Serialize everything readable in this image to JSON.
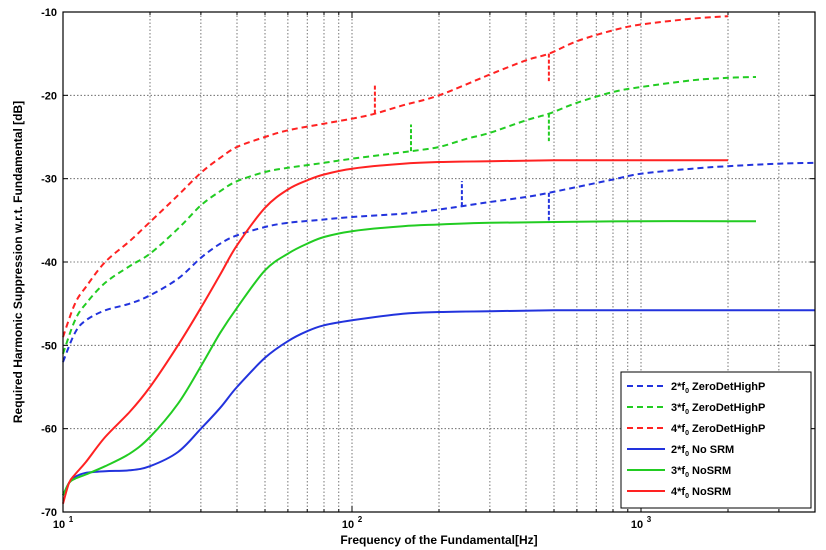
{
  "chart_data": {
    "type": "line",
    "xlabel": "Frequency of the Fundamental[Hz]",
    "ylabel": "Required Harmonic Suppression w.r.t. Fundamental [dB]",
    "xscale": "log",
    "xlim": [
      10,
      4000
    ],
    "ylim": [
      -70,
      -10
    ],
    "grid": "on",
    "legend_position": "bottom-right",
    "x_tick_labels": [
      {
        "value": 10,
        "base": "10",
        "exp": "1"
      },
      {
        "value": 100,
        "base": "10",
        "exp": "2"
      },
      {
        "value": 1000,
        "base": "10",
        "exp": "3"
      }
    ],
    "y_ticks": [
      -70,
      -60,
      -50,
      -40,
      -30,
      -20,
      -10
    ],
    "series": [
      {
        "name": "2*f0 ZeroDetHighP",
        "legend_prefix": "2*f",
        "legend_sub": "0",
        "legend_suffix": " ZeroDetHighP",
        "color": "#2233dd",
        "dash": true,
        "x": [
          10,
          11,
          12,
          14,
          17,
          20,
          25,
          30,
          35,
          40,
          50,
          60,
          80,
          100,
          150,
          200,
          240,
          300,
          400,
          480,
          600,
          800,
          1000,
          1500,
          2000,
          3000,
          4000
        ],
        "y": [
          -52,
          -48.5,
          -47,
          -45.8,
          -45,
          -44,
          -42,
          -39.5,
          -37.8,
          -36.8,
          -35.8,
          -35.3,
          -34.9,
          -34.6,
          -34.2,
          -33.7,
          -33.3,
          -32.8,
          -32.2,
          -31.7,
          -31,
          -30.1,
          -29.4,
          -28.8,
          -28.5,
          -28.2,
          -28.1
        ],
        "markers": [
          {
            "x": 240,
            "y1": -33.3,
            "y2": -30.3
          },
          {
            "x": 480,
            "y1": -31.7,
            "y2": -35
          }
        ]
      },
      {
        "name": "3*f0 ZeroDetHighP",
        "legend_prefix": "3*f",
        "legend_sub": "0",
        "legend_suffix": " ZeroDetHighP",
        "color": "#22cc22",
        "dash": true,
        "x": [
          10,
          11,
          12,
          14,
          17,
          20,
          25,
          30,
          35,
          40,
          50,
          60,
          80,
          100,
          130,
          160,
          200,
          250,
          300,
          400,
          480,
          600,
          800,
          1000,
          1500,
          2000,
          2500
        ],
        "y": [
          -51,
          -47,
          -45,
          -42.5,
          -40.5,
          -39,
          -36,
          -33.2,
          -31.5,
          -30.3,
          -29.2,
          -28.7,
          -28.1,
          -27.6,
          -27.1,
          -26.7,
          -26.2,
          -25.2,
          -24.5,
          -23,
          -22.2,
          -20.9,
          -19.6,
          -19,
          -18.2,
          -17.9,
          -17.8
        ],
        "markers": [
          {
            "x": 160,
            "y1": -26.7,
            "y2": -23.5
          },
          {
            "x": 480,
            "y1": -22.2,
            "y2": -25.5
          }
        ]
      },
      {
        "name": "4*f0 ZeroDetHighP",
        "legend_prefix": "4*f",
        "legend_sub": "0",
        "legend_suffix": " ZeroDetHighP",
        "color": "#ff2222",
        "dash": true,
        "x": [
          10,
          11,
          12,
          14,
          17,
          20,
          25,
          30,
          35,
          40,
          50,
          60,
          80,
          100,
          120,
          150,
          200,
          300,
          400,
          480,
          600,
          800,
          1000,
          1500,
          2000
        ],
        "y": [
          -49,
          -45,
          -43,
          -40,
          -37.5,
          -35.2,
          -32,
          -29.3,
          -27.5,
          -26.2,
          -25,
          -24.2,
          -23.4,
          -22.8,
          -22.2,
          -21.2,
          -20,
          -17.5,
          -15.8,
          -15,
          -13.5,
          -12.2,
          -11.5,
          -10.8,
          -10.5
        ],
        "markers": [
          {
            "x": 120,
            "y1": -22.2,
            "y2": -18.7
          },
          {
            "x": 480,
            "y1": -15,
            "y2": -18.3
          }
        ]
      },
      {
        "name": "2*f0 No SRM",
        "legend_prefix": "2*f",
        "legend_sub": "0",
        "legend_suffix": " No SRM",
        "color": "#2233dd",
        "dash": false,
        "x": [
          10,
          10.5,
          11,
          12,
          14,
          17,
          20,
          25,
          30,
          35,
          40,
          50,
          60,
          70,
          80,
          100,
          150,
          200,
          300,
          500,
          1000,
          2000,
          4000
        ],
        "y": [
          -68,
          -66.5,
          -65.8,
          -65.3,
          -65.1,
          -65,
          -64.5,
          -62.8,
          -60,
          -57.5,
          -55,
          -51.5,
          -49.5,
          -48.3,
          -47.6,
          -47,
          -46.2,
          -46,
          -45.9,
          -45.8,
          -45.8,
          -45.8,
          -45.8
        ],
        "markers": []
      },
      {
        "name": "3*f0 NoSRM",
        "legend_prefix": "3*f",
        "legend_sub": "0",
        "legend_suffix": " NoSRM",
        "color": "#22cc22",
        "dash": false,
        "x": [
          10,
          10.5,
          11,
          12,
          14,
          17,
          20,
          25,
          30,
          35,
          40,
          50,
          60,
          70,
          80,
          100,
          150,
          200,
          300,
          500,
          1000,
          2000,
          2500
        ],
        "y": [
          -68,
          -66.5,
          -66,
          -65.5,
          -64.5,
          -63,
          -61,
          -57,
          -52.5,
          -48.5,
          -45.5,
          -41,
          -39,
          -37.8,
          -37,
          -36.3,
          -35.7,
          -35.5,
          -35.3,
          -35.2,
          -35.1,
          -35.1,
          -35.1
        ],
        "markers": []
      },
      {
        "name": "4*f0 NoSRM",
        "legend_prefix": "4*f",
        "legend_sub": "0",
        "legend_suffix": " NoSRM",
        "color": "#ff2222",
        "dash": false,
        "x": [
          10,
          10.5,
          11,
          12,
          14,
          17,
          20,
          25,
          30,
          35,
          40,
          50,
          60,
          70,
          80,
          100,
          150,
          200,
          300,
          500,
          1000,
          2000
        ],
        "y": [
          -69,
          -66.5,
          -65.5,
          -64,
          -61,
          -58,
          -55,
          -50,
          -45.5,
          -41.5,
          -38,
          -33.5,
          -31.3,
          -30.2,
          -29.5,
          -28.8,
          -28.2,
          -28,
          -27.9,
          -27.8,
          -27.8,
          -27.8
        ],
        "markers": []
      }
    ]
  }
}
